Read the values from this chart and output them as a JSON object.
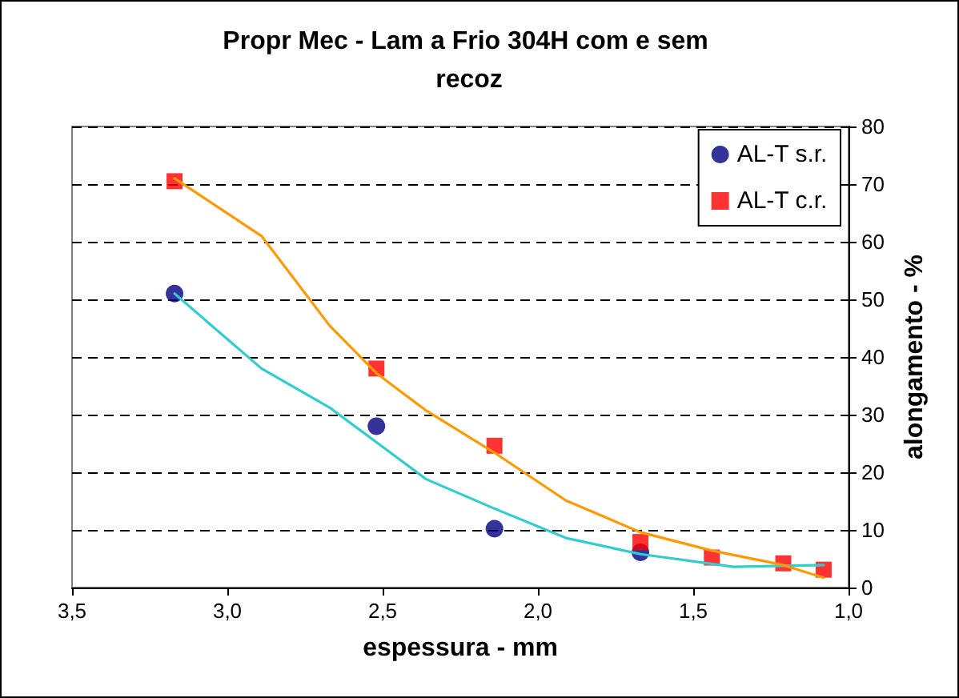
{
  "chart_data": {
    "type": "scatter",
    "title": "Propr Mec - Lam a Frio 304H com e sem recoz",
    "xlabel": "espessura - mm",
    "ylabel": "alongamento - %",
    "xlim": [
      3.5,
      1.0
    ],
    "xticks": [
      {
        "value": 3.5,
        "label": "3,5"
      },
      {
        "value": 3.0,
        "label": "3,0"
      },
      {
        "value": 2.5,
        "label": "2,5"
      },
      {
        "value": 2.0,
        "label": "2,0"
      },
      {
        "value": 1.5,
        "label": "1,5"
      },
      {
        "value": 1.0,
        "label": "1,0"
      }
    ],
    "ylim": [
      0,
      80
    ],
    "yticks": [
      0,
      10,
      20,
      30,
      40,
      50,
      60,
      70,
      80
    ],
    "grid": "y",
    "legend": "top right",
    "series": [
      {
        "name": "AL-T s.r.",
        "color": "#000080",
        "marker": "circle",
        "x": [
          3.17,
          2.52,
          2.14,
          1.67
        ],
        "values": [
          51,
          28,
          10.2,
          6.1
        ]
      },
      {
        "name": "AL-T c.r.",
        "color": "#ff0000",
        "marker": "square",
        "x": [
          3.17,
          2.52,
          2.14,
          1.67,
          1.44,
          1.21,
          1.08
        ],
        "values": [
          70.5,
          38,
          24.6,
          7.9,
          5.2,
          4.2,
          3.1
        ]
      },
      {
        "type": "line",
        "color": "#33cccc",
        "marker": "none",
        "x": [
          3.17,
          2.89,
          2.67,
          2.52,
          2.36,
          2.14,
          1.91,
          1.67,
          1.37,
          1.08
        ],
        "values": [
          51,
          38,
          31.2,
          25.2,
          18.8,
          13.7,
          8.6,
          5.8,
          3.6,
          3.9
        ]
      },
      {
        "type": "line",
        "color": "#ff9900",
        "marker": "none",
        "x": [
          3.17,
          2.89,
          2.67,
          2.52,
          2.36,
          2.14,
          1.91,
          1.67,
          1.44,
          1.21,
          1.08
        ],
        "values": [
          71,
          61,
          45.4,
          37.2,
          30.7,
          23.4,
          15.1,
          9.6,
          6.4,
          3.9,
          1.7
        ]
      }
    ]
  }
}
